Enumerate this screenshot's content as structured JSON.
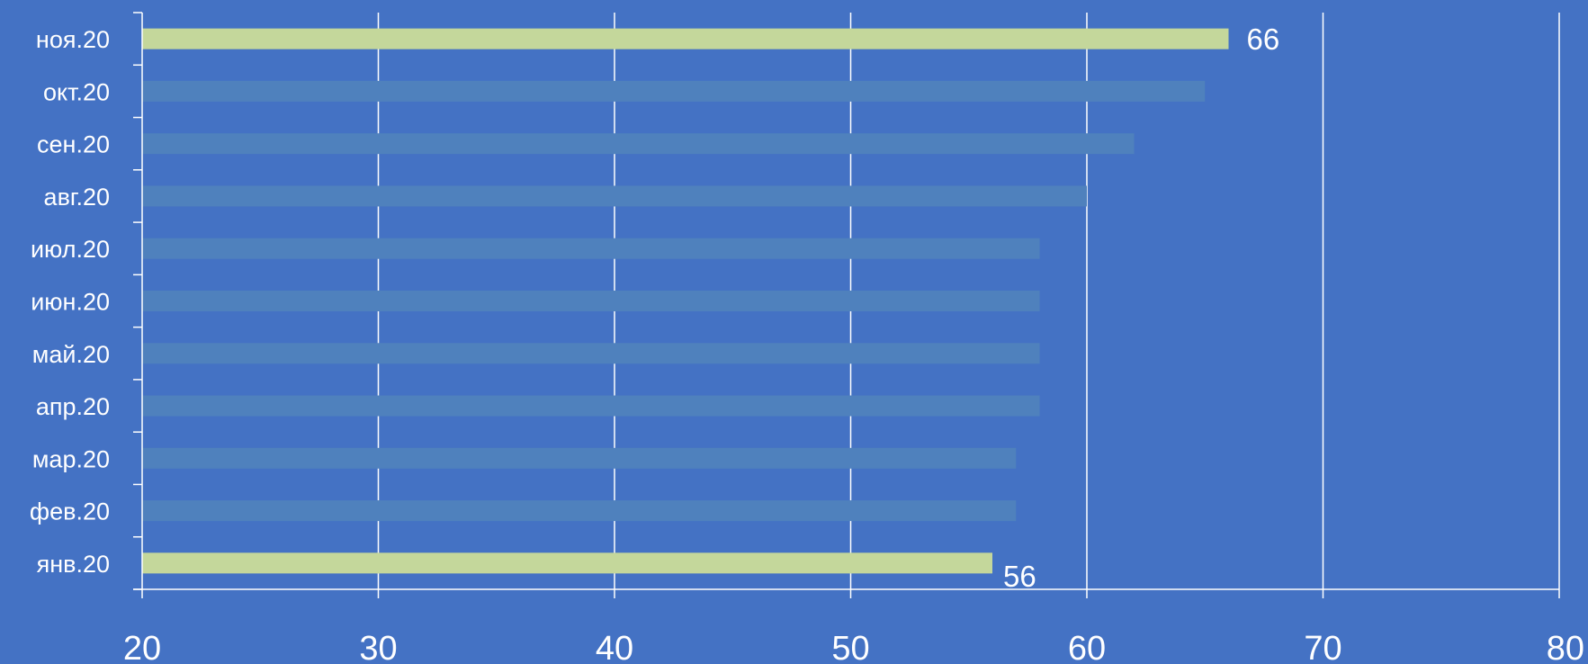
{
  "chart_data": {
    "type": "bar",
    "orientation": "horizontal",
    "title": "",
    "xlabel": "",
    "ylabel": "",
    "categories": [
      "янв.20",
      "фев.20",
      "мар.20",
      "апр.20",
      "май.20",
      "июн.20",
      "июл.20",
      "авг.20",
      "сен.20",
      "окт.20",
      "ноя.20"
    ],
    "values": [
      56,
      57,
      57,
      58,
      58,
      58,
      58,
      60,
      62,
      65,
      66
    ],
    "highlighted": [
      true,
      false,
      false,
      false,
      false,
      false,
      false,
      false,
      false,
      false,
      true
    ],
    "data_labels": [
      "56",
      "",
      "",
      "",
      "",
      "",
      "",
      "",
      "",
      "",
      "66"
    ],
    "xlim": [
      20,
      80
    ],
    "x_ticks": [
      "20",
      "30",
      "40",
      "50",
      "60",
      "70",
      "80"
    ],
    "grid": "vertical",
    "legend": "none",
    "colors": {
      "background": "#4472c4",
      "bar": "#4f81bd",
      "bar_highlight": "#c4d79b",
      "gridline": "#ffffff",
      "text": "#ffffff"
    }
  }
}
